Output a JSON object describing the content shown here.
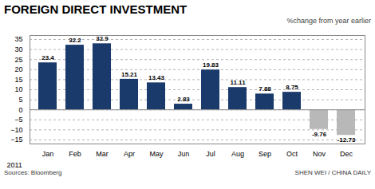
{
  "chart_data": {
    "type": "bar",
    "title": "FOREIGN DIRECT INVESTMENT",
    "subtitle": "%change from year earlier",
    "categories": [
      "Jan",
      "Feb",
      "Mar",
      "Apr",
      "May",
      "Jun",
      "Jul",
      "Aug",
      "Sep",
      "Oct",
      "Nov",
      "Dec"
    ],
    "values": [
      23.4,
      32.2,
      32.9,
      15.21,
      13.43,
      2.83,
      19.83,
      11.11,
      7.88,
      8.75,
      -9.76,
      -12.73
    ],
    "colors": [
      "#1a3a6b",
      "#1a3a6b",
      "#1a3a6b",
      "#1a3a6b",
      "#1a3a6b",
      "#1a3a6b",
      "#1a3a6b",
      "#1a3a6b",
      "#1a3a6b",
      "#1a3a6b",
      "#b8b8b8",
      "#b8b8b8"
    ],
    "xlabel": "2011",
    "annotations": [
      "Sources: Bloomberg",
      "SHEN WEI / CHINA DAILY"
    ],
    "ylim": [
      -17,
      37
    ],
    "yticks": [
      -15,
      -10,
      -5,
      0,
      5,
      10,
      15,
      20,
      25,
      30,
      35
    ],
    "grid": true,
    "data_labels": true
  }
}
